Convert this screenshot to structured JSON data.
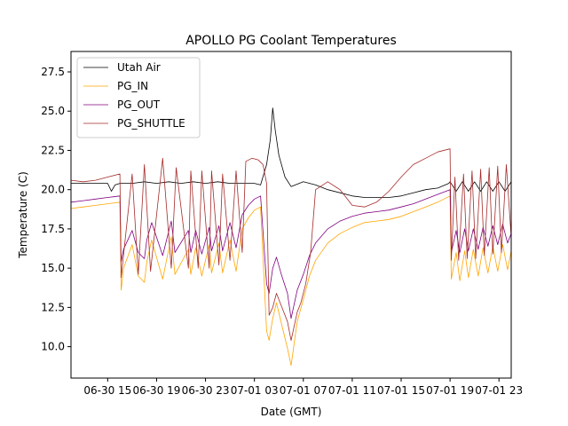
{
  "chart_data": {
    "type": "line",
    "title": "APOLLO PG Coolant Temperatures",
    "xlabel": "Date (GMT)",
    "ylabel": "Temperature (C)",
    "x_units": "hours since 06-30 00:00 GMT",
    "xlim": [
      12.0,
      48.0
    ],
    "ylim": [
      8.0,
      28.8
    ],
    "x_ticks": [
      {
        "value": 15,
        "label": "06-30 15"
      },
      {
        "value": 19,
        "label": "06-30 19"
      },
      {
        "value": 23,
        "label": "06-30 23"
      },
      {
        "value": 27,
        "label": "07-01 03"
      },
      {
        "value": 31,
        "label": "07-01 07"
      },
      {
        "value": 35,
        "label": "07-01 11"
      },
      {
        "value": 39,
        "label": "07-01 15"
      },
      {
        "value": 43,
        "label": "07-01 19"
      },
      {
        "value": 47,
        "label": "07-01 23"
      }
    ],
    "y_ticks": [
      {
        "value": 10.0,
        "label": "10.0"
      },
      {
        "value": 12.5,
        "label": "12.5"
      },
      {
        "value": 15.0,
        "label": "15.0"
      },
      {
        "value": 17.5,
        "label": "17.5"
      },
      {
        "value": 20.0,
        "label": "20.0"
      },
      {
        "value": 22.5,
        "label": "22.5"
      },
      {
        "value": 25.0,
        "label": "25.0"
      },
      {
        "value": 27.5,
        "label": "27.5"
      }
    ],
    "grid": false,
    "legend_position": "top-left",
    "series": [
      {
        "name": "Utah Air",
        "color": "#000000",
        "x": [
          12.0,
          13.0,
          14.0,
          15.0,
          15.3,
          15.6,
          16.0,
          17.0,
          18.0,
          19.0,
          20.0,
          21.0,
          22.0,
          23.0,
          24.0,
          25.0,
          26.0,
          26.5,
          27.0,
          27.5,
          28.0,
          28.3,
          28.5,
          28.7,
          29.0,
          29.5,
          30.0,
          31.0,
          32.0,
          33.0,
          34.0,
          35.0,
          36.0,
          37.0,
          38.0,
          39.0,
          40.0,
          41.0,
          42.0,
          42.9,
          43.0,
          43.5,
          44.0,
          44.5,
          45.0,
          45.5,
          46.0,
          46.5,
          47.0,
          47.5,
          48.0
        ],
        "y": [
          20.4,
          20.4,
          20.4,
          20.4,
          19.9,
          20.3,
          20.4,
          20.4,
          20.5,
          20.4,
          20.5,
          20.4,
          20.5,
          20.4,
          20.5,
          20.4,
          20.4,
          20.4,
          20.4,
          20.3,
          21.6,
          23.2,
          25.2,
          23.8,
          22.2,
          20.8,
          20.2,
          20.5,
          20.3,
          20.0,
          19.8,
          19.6,
          19.5,
          19.5,
          19.5,
          19.6,
          19.8,
          20.0,
          20.1,
          20.4,
          20.5,
          19.9,
          20.5,
          19.9,
          20.5,
          19.9,
          20.5,
          19.9,
          20.5,
          19.9,
          20.5
        ]
      },
      {
        "name": "PG_IN",
        "color": "#ffa500",
        "x": [
          12.0,
          13.0,
          14.0,
          15.0,
          16.0,
          16.1,
          16.3,
          17.0,
          17.5,
          18.0,
          18.2,
          18.6,
          19.5,
          20.2,
          20.5,
          21.6,
          21.8,
          22.2,
          22.7,
          23.3,
          23.5,
          24.1,
          24.4,
          25.0,
          25.5,
          26.0,
          26.5,
          27.0,
          27.5,
          28.0,
          28.2,
          28.5,
          28.8,
          29.2,
          29.7,
          30.0,
          30.5,
          31.0,
          31.5,
          32.0,
          33.0,
          34.0,
          35.0,
          36.0,
          37.0,
          38.0,
          39.0,
          40.0,
          41.0,
          42.0,
          43.0,
          43.1,
          43.5,
          43.8,
          44.2,
          44.5,
          44.9,
          45.3,
          45.7,
          46.1,
          46.5,
          46.9,
          47.3,
          47.7,
          48.0
        ],
        "y": [
          18.8,
          18.9,
          19.0,
          19.1,
          19.2,
          13.6,
          15.0,
          16.5,
          14.5,
          14.1,
          15.4,
          16.8,
          14.3,
          17.0,
          14.6,
          16.2,
          14.6,
          16.3,
          14.5,
          16.5,
          14.7,
          16.6,
          14.7,
          16.8,
          14.8,
          17.5,
          18.2,
          18.7,
          18.9,
          11.0,
          10.4,
          11.8,
          12.8,
          11.5,
          9.9,
          8.8,
          11.6,
          13.0,
          14.5,
          15.5,
          16.6,
          17.2,
          17.6,
          17.9,
          18.0,
          18.1,
          18.3,
          18.6,
          18.9,
          19.2,
          19.6,
          14.3,
          16.0,
          14.2,
          16.1,
          14.4,
          16.2,
          14.5,
          16.3,
          14.7,
          16.4,
          14.8,
          16.5,
          14.9,
          16.1
        ]
      },
      {
        "name": "PG_OUT",
        "color": "#800080",
        "x": [
          12.0,
          13.0,
          14.0,
          15.0,
          16.0,
          16.1,
          16.3,
          17.0,
          17.5,
          18.0,
          18.2,
          18.6,
          19.5,
          20.2,
          20.5,
          21.6,
          21.8,
          22.2,
          22.7,
          23.3,
          23.5,
          24.1,
          24.4,
          25.0,
          25.5,
          26.0,
          26.5,
          27.0,
          27.5,
          28.0,
          28.2,
          28.5,
          28.8,
          29.2,
          29.7,
          30.0,
          30.5,
          31.0,
          31.5,
          32.0,
          33.0,
          34.0,
          35.0,
          36.0,
          37.0,
          38.0,
          39.0,
          40.0,
          41.0,
          42.0,
          43.0,
          43.1,
          43.5,
          43.8,
          44.2,
          44.5,
          44.9,
          45.3,
          45.7,
          46.1,
          46.5,
          46.9,
          47.3,
          47.7,
          48.0
        ],
        "y": [
          19.2,
          19.3,
          19.4,
          19.5,
          19.6,
          15.4,
          16.2,
          17.4,
          16.0,
          15.6,
          16.8,
          17.9,
          15.8,
          18.0,
          16.0,
          17.4,
          16.0,
          17.4,
          15.9,
          17.6,
          16.1,
          17.7,
          16.1,
          17.9,
          16.3,
          18.4,
          19.0,
          19.4,
          19.6,
          14.0,
          13.4,
          15.0,
          15.7,
          14.6,
          13.4,
          11.8,
          13.6,
          14.6,
          15.8,
          16.6,
          17.5,
          18.0,
          18.3,
          18.5,
          18.6,
          18.7,
          18.9,
          19.1,
          19.4,
          19.7,
          20.0,
          16.0,
          17.4,
          16.0,
          17.5,
          16.1,
          17.5,
          16.2,
          17.6,
          16.4,
          17.7,
          16.5,
          17.8,
          16.6,
          17.2
        ]
      },
      {
        "name": "PG_SHUTTLE",
        "color": "#a52a2a",
        "x": [
          12.0,
          13.0,
          14.0,
          15.0,
          16.0,
          16.1,
          17.0,
          17.5,
          18.0,
          18.5,
          19.5,
          20.2,
          20.6,
          21.6,
          21.8,
          22.4,
          22.7,
          23.3,
          23.5,
          24.1,
          24.4,
          25.0,
          25.5,
          26.0,
          26.3,
          26.8,
          27.3,
          27.7,
          28.0,
          28.2,
          28.5,
          28.8,
          29.2,
          29.7,
          30.0,
          30.5,
          30.8,
          31.2,
          31.6,
          32.0,
          33.0,
          34.0,
          34.5,
          35.0,
          36.0,
          37.0,
          38.0,
          39.0,
          40.0,
          41.0,
          42.0,
          43.0,
          43.1,
          43.4,
          43.7,
          44.1,
          44.4,
          44.8,
          45.1,
          45.5,
          45.8,
          46.2,
          46.5,
          46.9,
          47.2,
          47.6,
          48.0
        ],
        "y": [
          20.6,
          20.5,
          20.6,
          20.8,
          21.0,
          14.4,
          21.0,
          14.6,
          21.6,
          14.8,
          22.0,
          15.0,
          21.4,
          15.0,
          21.2,
          15.0,
          21.2,
          15.0,
          21.2,
          15.2,
          21.0,
          15.5,
          21.2,
          16.0,
          21.8,
          22.0,
          21.9,
          21.6,
          20.4,
          12.0,
          12.5,
          13.4,
          12.6,
          11.6,
          10.4,
          12.2,
          12.8,
          14.0,
          16.0,
          20.0,
          20.5,
          20.0,
          19.5,
          19.0,
          18.9,
          19.2,
          19.9,
          20.8,
          21.6,
          22.0,
          22.4,
          22.6,
          15.5,
          20.8,
          15.5,
          21.0,
          15.6,
          21.2,
          15.6,
          21.3,
          15.8,
          21.4,
          15.9,
          21.5,
          16.0,
          21.6,
          17.0
        ]
      }
    ]
  }
}
